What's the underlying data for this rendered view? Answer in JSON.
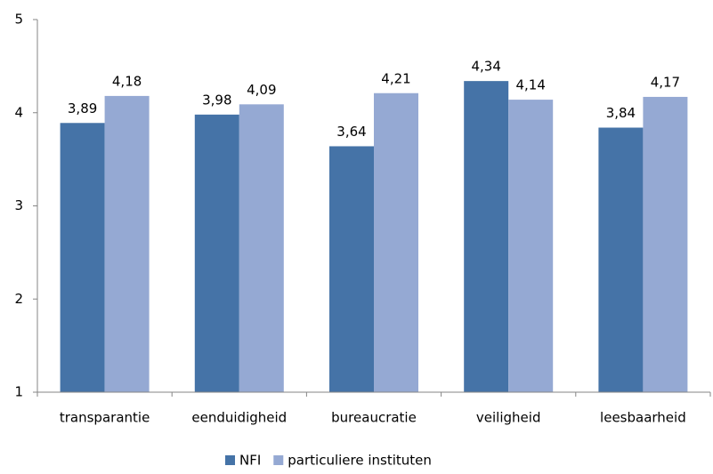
{
  "chart_data": {
    "type": "bar",
    "categories": [
      "transparantie",
      "eenduidigheid",
      "bureaucratie",
      "veiligheid",
      "leesbaarheid"
    ],
    "series": [
      {
        "name": "NFI",
        "color": "#4573a7",
        "values": [
          3.89,
          3.98,
          3.64,
          4.34,
          3.84
        ],
        "value_labels": [
          "3,89",
          "3,98",
          "3,64",
          "4,34",
          "3,84"
        ]
      },
      {
        "name": "particuliere instituten",
        "color": "#95a9d3",
        "values": [
          4.18,
          4.09,
          4.21,
          4.14,
          4.17
        ],
        "value_labels": [
          "4,18",
          "4,09",
          "4,21",
          "4,14",
          "4,17"
        ]
      }
    ],
    "ylim": [
      1,
      5
    ],
    "yticks": [
      1,
      2,
      3,
      4,
      5
    ],
    "grid": false,
    "legend": "bottom"
  }
}
